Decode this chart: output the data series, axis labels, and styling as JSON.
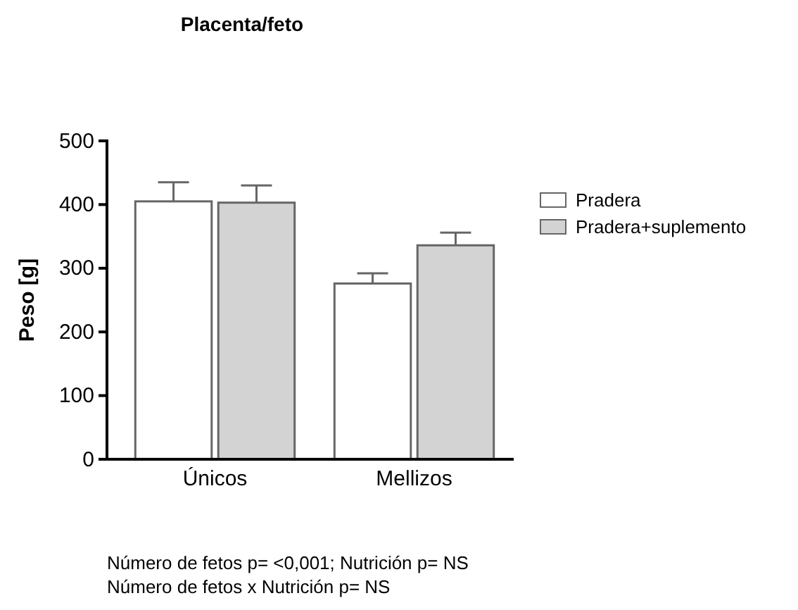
{
  "chart_data": {
    "type": "bar",
    "title": "Placenta/feto",
    "ylabel": "Peso [g]",
    "categories": [
      "Únicos",
      "Mellizos"
    ],
    "series": [
      {
        "name": "Pradera",
        "color": "#ffffff",
        "values": [
          405,
          276
        ],
        "errors": [
          [
            405,
            435
          ],
          [
            276,
            292
          ]
        ]
      },
      {
        "name": "Pradera+suplemento",
        "color": "#d3d3d3",
        "values": [
          403,
          336
        ],
        "errors": [
          [
            403,
            430
          ],
          [
            336,
            356
          ]
        ]
      }
    ],
    "ylim": [
      0,
      500
    ],
    "yticks": [
      0,
      100,
      200,
      300,
      400,
      500
    ],
    "grid": false,
    "legend": "top right",
    "annotations": [
      "Número de fetos p= <0,001; Nutrición p= NS",
      "Número de fetos x Nutrición p= NS"
    ]
  }
}
